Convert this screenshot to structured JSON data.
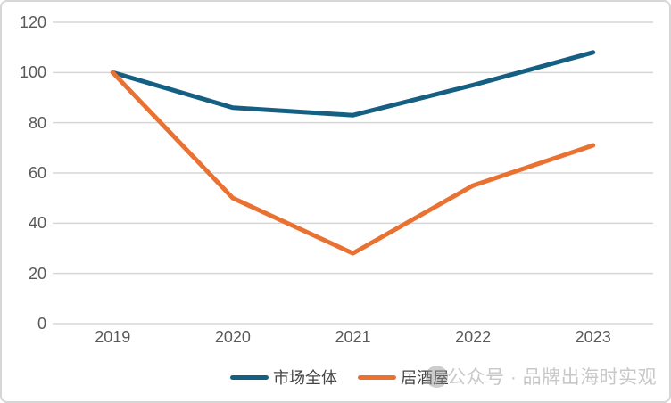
{
  "watermark": {
    "text": "公众号 · 品牌出海时实观",
    "logo": "official-account-logo"
  },
  "chart_data": {
    "type": "line",
    "title": "",
    "xlabel": "",
    "ylabel": "",
    "categories": [
      "2019",
      "2020",
      "2021",
      "2022",
      "2023"
    ],
    "series": [
      {
        "name": "市场全体",
        "color": "#156082",
        "values": [
          100,
          86,
          83,
          95,
          108
        ]
      },
      {
        "name": "居酒屋",
        "color": "#E97132",
        "values": [
          100,
          50,
          28,
          55,
          71
        ]
      }
    ],
    "ylim": [
      0,
      120
    ],
    "yticks": [
      0,
      20,
      40,
      60,
      80,
      100,
      120
    ],
    "grid": "horizontal",
    "legend_position": "bottom",
    "colors": {
      "gridline": "#d6d6d6",
      "tick_text": "#595959",
      "legend_text": "#444444",
      "watermark_text": "#c8c8c8"
    }
  }
}
